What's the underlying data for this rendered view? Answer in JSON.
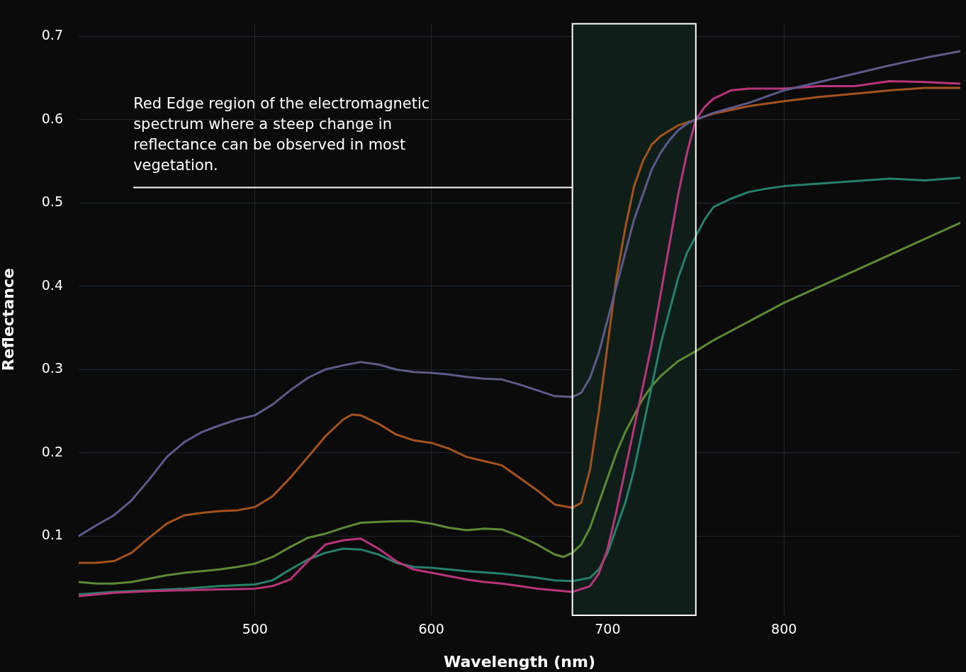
{
  "chart_data": {
    "type": "line",
    "xlabel": "Wavelength (nm)",
    "ylabel": "Reflectance",
    "xlim": [
      400,
      900
    ],
    "ylim": [
      0.005,
      0.715
    ],
    "xticks": [
      500,
      600,
      700,
      800
    ],
    "yticks": [
      0.1,
      0.2,
      0.3,
      0.4,
      0.5,
      0.6,
      0.7
    ],
    "grid": true,
    "marker": "none",
    "line_style": "solid",
    "bands": [
      {
        "axis": "x",
        "from": 680,
        "to": 750,
        "color": "#0f1e19",
        "label": "Red Edge region of the electromagnetic spectrum where a steep change in reflectance can be observed in most vegetation."
      }
    ],
    "series": [
      {
        "color": "#5e5a8a",
        "x": [
          400,
          410,
          420,
          430,
          440,
          450,
          460,
          470,
          480,
          490,
          500,
          510,
          520,
          530,
          540,
          550,
          560,
          570,
          580,
          590,
          600,
          610,
          620,
          630,
          640,
          650,
          660,
          670,
          680,
          685,
          690,
          695,
          700,
          705,
          710,
          715,
          720,
          725,
          730,
          735,
          740,
          745,
          750,
          760,
          780,
          800,
          820,
          840,
          860,
          880,
          900
        ],
        "values": [
          0.1,
          0.113,
          0.125,
          0.143,
          0.168,
          0.195,
          0.213,
          0.225,
          0.233,
          0.24,
          0.245,
          0.258,
          0.275,
          0.29,
          0.3,
          0.305,
          0.309,
          0.306,
          0.3,
          0.297,
          0.296,
          0.294,
          0.291,
          0.289,
          0.288,
          0.282,
          0.275,
          0.268,
          0.267,
          0.272,
          0.29,
          0.32,
          0.36,
          0.4,
          0.44,
          0.48,
          0.51,
          0.54,
          0.56,
          0.575,
          0.587,
          0.595,
          0.6,
          0.608,
          0.62,
          0.635,
          0.645,
          0.655,
          0.665,
          0.674,
          0.682
        ]
      },
      {
        "color": "#a3531f",
        "x": [
          400,
          410,
          420,
          430,
          440,
          450,
          460,
          470,
          480,
          490,
          500,
          510,
          520,
          530,
          540,
          550,
          555,
          560,
          570,
          580,
          590,
          600,
          610,
          620,
          630,
          640,
          650,
          660,
          670,
          680,
          685,
          690,
          695,
          700,
          705,
          710,
          715,
          720,
          725,
          730,
          740,
          750,
          760,
          780,
          800,
          820,
          840,
          860,
          880,
          900
        ],
        "values": [
          0.068,
          0.068,
          0.07,
          0.08,
          0.098,
          0.115,
          0.125,
          0.128,
          0.13,
          0.131,
          0.135,
          0.148,
          0.17,
          0.195,
          0.22,
          0.24,
          0.246,
          0.245,
          0.235,
          0.222,
          0.215,
          0.212,
          0.205,
          0.195,
          0.19,
          0.185,
          0.17,
          0.155,
          0.138,
          0.134,
          0.14,
          0.18,
          0.25,
          0.33,
          0.41,
          0.47,
          0.52,
          0.55,
          0.57,
          0.58,
          0.593,
          0.6,
          0.607,
          0.616,
          0.622,
          0.627,
          0.631,
          0.635,
          0.638,
          0.638
        ]
      },
      {
        "color": "#b8357a",
        "x": [
          400,
          420,
          440,
          460,
          480,
          500,
          510,
          520,
          530,
          540,
          550,
          560,
          570,
          580,
          590,
          600,
          610,
          620,
          630,
          640,
          650,
          660,
          670,
          680,
          690,
          695,
          700,
          705,
          710,
          715,
          720,
          725,
          730,
          735,
          740,
          745,
          750,
          755,
          760,
          770,
          780,
          800,
          820,
          840,
          850,
          860,
          880,
          900
        ],
        "values": [
          0.028,
          0.032,
          0.034,
          0.035,
          0.036,
          0.037,
          0.04,
          0.048,
          0.07,
          0.09,
          0.095,
          0.097,
          0.085,
          0.07,
          0.06,
          0.056,
          0.052,
          0.048,
          0.045,
          0.043,
          0.04,
          0.037,
          0.035,
          0.033,
          0.04,
          0.055,
          0.085,
          0.13,
          0.18,
          0.23,
          0.28,
          0.33,
          0.39,
          0.45,
          0.51,
          0.56,
          0.6,
          0.615,
          0.625,
          0.635,
          0.637,
          0.637,
          0.64,
          0.64,
          0.643,
          0.646,
          0.645,
          0.643
        ]
      },
      {
        "color": "#27806a",
        "x": [
          400,
          420,
          440,
          460,
          480,
          500,
          510,
          520,
          530,
          540,
          550,
          560,
          570,
          580,
          590,
          600,
          620,
          640,
          660,
          670,
          680,
          690,
          695,
          700,
          705,
          710,
          715,
          720,
          725,
          730,
          735,
          740,
          745,
          750,
          755,
          760,
          770,
          780,
          790,
          800,
          820,
          840,
          860,
          870,
          880,
          900
        ],
        "values": [
          0.03,
          0.033,
          0.035,
          0.037,
          0.04,
          0.042,
          0.047,
          0.06,
          0.072,
          0.08,
          0.085,
          0.084,
          0.078,
          0.068,
          0.063,
          0.062,
          0.058,
          0.055,
          0.05,
          0.047,
          0.046,
          0.05,
          0.06,
          0.08,
          0.11,
          0.14,
          0.18,
          0.23,
          0.28,
          0.33,
          0.37,
          0.41,
          0.44,
          0.46,
          0.48,
          0.495,
          0.505,
          0.513,
          0.517,
          0.52,
          0.523,
          0.526,
          0.529,
          0.528,
          0.527,
          0.53
        ]
      },
      {
        "color": "#5e8a35",
        "x": [
          400,
          410,
          420,
          430,
          440,
          450,
          460,
          470,
          480,
          490,
          500,
          510,
          520,
          530,
          540,
          550,
          560,
          570,
          580,
          590,
          600,
          610,
          620,
          630,
          640,
          650,
          660,
          670,
          675,
          680,
          685,
          690,
          695,
          700,
          705,
          710,
          715,
          720,
          725,
          730,
          740,
          750,
          760,
          800,
          850,
          900
        ],
        "values": [
          0.045,
          0.043,
          0.043,
          0.045,
          0.049,
          0.053,
          0.056,
          0.058,
          0.06,
          0.063,
          0.067,
          0.075,
          0.087,
          0.098,
          0.103,
          0.11,
          0.116,
          0.117,
          0.118,
          0.118,
          0.115,
          0.11,
          0.107,
          0.109,
          0.108,
          0.1,
          0.09,
          0.078,
          0.075,
          0.08,
          0.09,
          0.11,
          0.14,
          0.17,
          0.2,
          0.225,
          0.245,
          0.265,
          0.28,
          0.292,
          0.31,
          0.322,
          0.335,
          0.38,
          0.428,
          0.476
        ]
      }
    ]
  }
}
